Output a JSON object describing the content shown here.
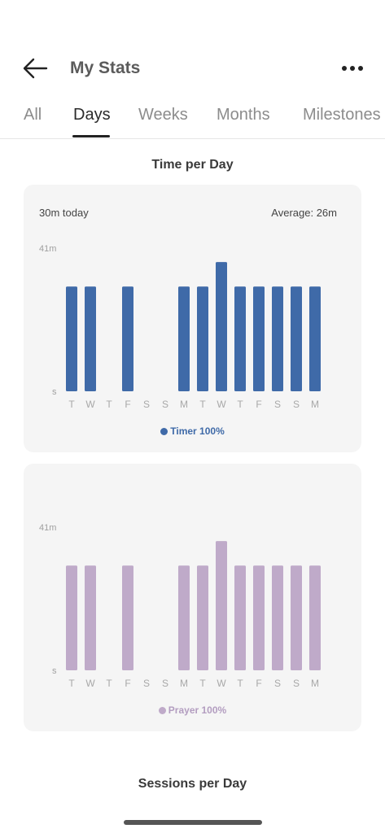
{
  "header": {
    "title": "My Stats",
    "back_icon": "arrow-left-icon",
    "more_icon": "more-horizontal-icon"
  },
  "tabs": [
    {
      "label": "All",
      "active": false
    },
    {
      "label": "Days",
      "active": true
    },
    {
      "label": "Weeks",
      "active": false
    },
    {
      "label": "Months",
      "active": false
    },
    {
      "label": "Milestones",
      "active": false
    }
  ],
  "sections": {
    "time_per_day": "Time per Day",
    "sessions_per_day": "Sessions per Day"
  },
  "summary": {
    "today": "30m today",
    "average": "Average: 26m"
  },
  "chart_data": [
    {
      "type": "bar",
      "categories": [
        "T",
        "W",
        "T",
        "F",
        "S",
        "S",
        "M",
        "T",
        "W",
        "T",
        "F",
        "S",
        "S",
        "M"
      ],
      "series": [
        {
          "name": "Timer 100%",
          "values": [
            30,
            30,
            0,
            30,
            0,
            0,
            30,
            30,
            37,
            30,
            30,
            30,
            30,
            30
          ]
        }
      ],
      "ytick_labels": [
        "41m",
        "s"
      ],
      "color": "#3f6aa8",
      "grid": false,
      "legend": "bottom-center"
    },
    {
      "type": "bar",
      "categories": [
        "T",
        "W",
        "T",
        "F",
        "S",
        "S",
        "M",
        "T",
        "W",
        "T",
        "F",
        "S",
        "S",
        "M"
      ],
      "series": [
        {
          "name": "Prayer 100%",
          "values": [
            30,
            30,
            0,
            30,
            0,
            0,
            30,
            30,
            37,
            30,
            30,
            30,
            30,
            30
          ]
        }
      ],
      "ytick_labels": [
        "41m",
        "s"
      ],
      "color": "#bfaac9",
      "grid": false,
      "legend": "bottom-center"
    }
  ]
}
